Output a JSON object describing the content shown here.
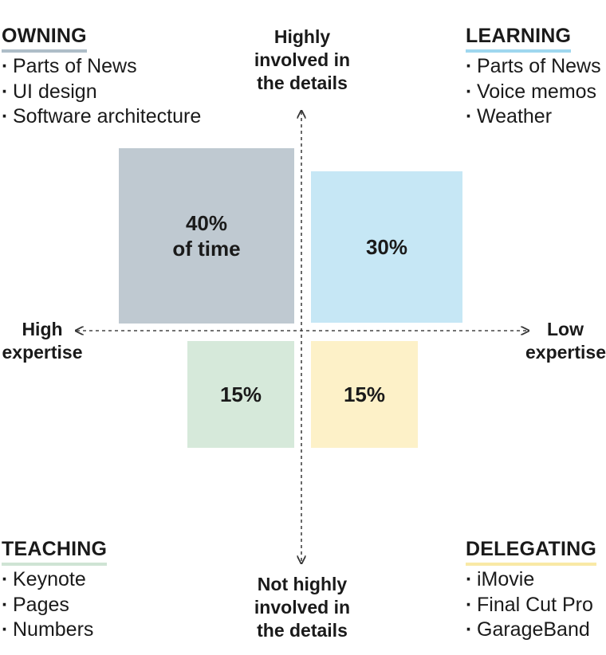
{
  "quadrants": {
    "owning": {
      "title": "OWNING",
      "color": "#aebdc8",
      "items": [
        "Parts of News",
        "UI design",
        "Software architecture"
      ]
    },
    "learning": {
      "title": "LEARNING",
      "color": "#9fd7ef",
      "items": [
        "Parts of News",
        "Voice memos",
        "Weather"
      ]
    },
    "teaching": {
      "title": "TEACHING",
      "color": "#cfe4d4",
      "items": [
        "Keynote",
        "Pages",
        "Numbers"
      ]
    },
    "delegating": {
      "title": "DELEGATING",
      "color": "#f9e9a6",
      "items": [
        "iMovie",
        "Final Cut Pro",
        "GarageBand"
      ]
    }
  },
  "axes": {
    "top": [
      "Highly",
      "involved in",
      "the details"
    ],
    "bottom": [
      "Not highly",
      "involved in",
      "the details"
    ],
    "left": [
      "High",
      "expertise"
    ],
    "right": [
      "Low",
      "expertise"
    ]
  },
  "boxes": {
    "owning": {
      "label_line1": "40%",
      "label_line2": "of time",
      "value_percent": 40,
      "fill": "#bfc9d1"
    },
    "learning": {
      "label_line1": "30%",
      "value_percent": 30,
      "fill": "#c6e7f5"
    },
    "teaching": {
      "label_line1": "15%",
      "value_percent": 15,
      "fill": "#d6e9da"
    },
    "delegating": {
      "label_line1": "15%",
      "value_percent": 15,
      "fill": "#fdf1c8"
    }
  },
  "chart_data": {
    "type": "diagram",
    "title": "",
    "categories": [
      "OWNING",
      "LEARNING",
      "TEACHING",
      "DELEGATING"
    ],
    "values": [
      40,
      30,
      15,
      15
    ],
    "unit": "% of time",
    "x_axis": {
      "left": "High expertise",
      "right": "Low expertise"
    },
    "y_axis": {
      "top": "Highly involved in the details",
      "bottom": "Not highly involved in the details"
    }
  }
}
